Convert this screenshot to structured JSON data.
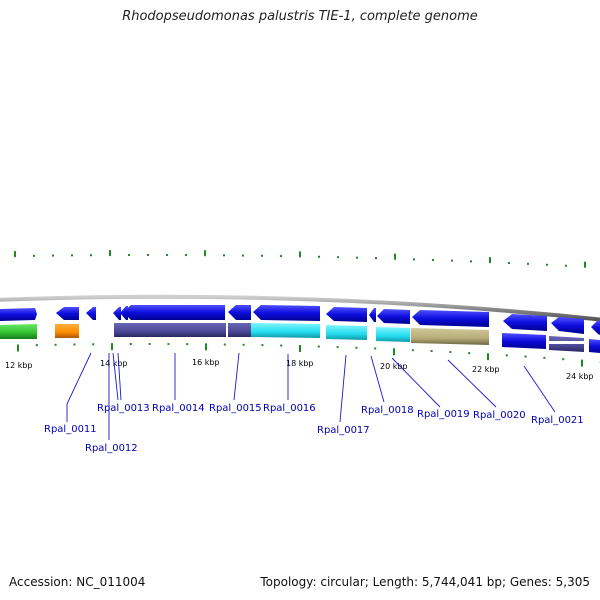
{
  "header": {
    "title": "Rhodopseudomonas palustris TIE-1, complete genome"
  },
  "footer": {
    "accession": "Accession: NC_011004",
    "summary": "Topology: circular; Length: 5,744,041 bp; Genes: 5,305"
  },
  "scale": {
    "labels": [
      "12 kbp",
      "14 kbp",
      "16 kbp",
      "18 kbp",
      "20 kbp",
      "22 kbp",
      "24 kbp"
    ]
  },
  "colors": {
    "backbone": "#8c8c8c",
    "forward_gene": "#1010e0",
    "reverse_gene": "#1010e0",
    "cog_green": "#33cc33",
    "cog_orange": "#ff8c00",
    "cog_slate": "#4b4896",
    "cog_cyan": "#22ddee",
    "cog_khaki": "#b5ac78",
    "tick": "#1f8a1f",
    "label": "#0000b8"
  },
  "genes": [
    {
      "label": "Rpal_0011"
    },
    {
      "label": "Rpal_0012"
    },
    {
      "label": "Rpal_0013"
    },
    {
      "label": "Rpal_0014"
    },
    {
      "label": "Rpal_0015"
    },
    {
      "label": "Rpal_0016"
    },
    {
      "label": "Rpal_0017"
    },
    {
      "label": "Rpal_0018"
    },
    {
      "label": "Rpal_0019"
    },
    {
      "label": "Rpal_0020"
    },
    {
      "label": "Rpal_0021"
    }
  ]
}
